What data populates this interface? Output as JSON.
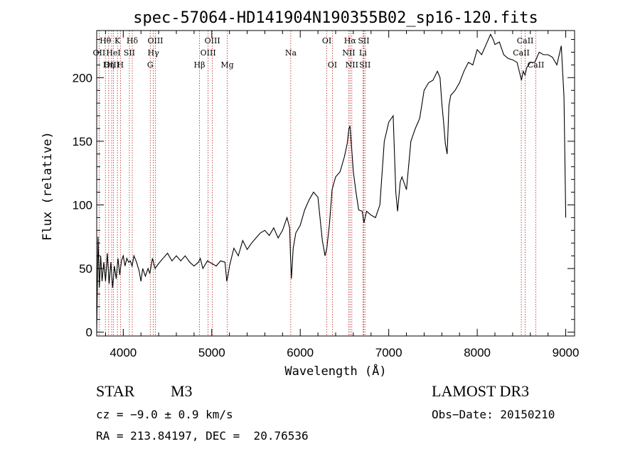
{
  "chart_data": {
    "type": "line",
    "title": "spec-57064-HD141904N190355B02_sp16-120.fits",
    "xlabel": "Wavelength (Å)",
    "ylabel": "Flux (relative)",
    "xlim": [
      3700,
      9100
    ],
    "ylim": [
      -3,
      237
    ],
    "xticks": [
      4000,
      5000,
      6000,
      7000,
      8000,
      9000
    ],
    "yticks": [
      0,
      50,
      100,
      150,
      200
    ],
    "xtick_labels": [
      "4000",
      "5000",
      "6000",
      "7000",
      "8000",
      "9000"
    ],
    "ytick_labels": [
      "0",
      "50",
      "100",
      "150",
      "200"
    ],
    "series": [
      {
        "name": "flux",
        "x": [
          3700,
          3715,
          3730,
          3745,
          3760,
          3780,
          3800,
          3820,
          3840,
          3860,
          3880,
          3900,
          3920,
          3940,
          3960,
          3980,
          4000,
          4020,
          4040,
          4060,
          4080,
          4100,
          4120,
          4150,
          4180,
          4200,
          4220,
          4250,
          4280,
          4300,
          4330,
          4360,
          4400,
          4450,
          4500,
          4550,
          4600,
          4650,
          4700,
          4750,
          4800,
          4850,
          4870,
          4900,
          4950,
          5000,
          5050,
          5100,
          5150,
          5170,
          5185,
          5200,
          5250,
          5300,
          5350,
          5400,
          5450,
          5500,
          5550,
          5600,
          5650,
          5700,
          5750,
          5800,
          5850,
          5880,
          5890,
          5900,
          5920,
          5950,
          6000,
          6050,
          6100,
          6150,
          6200,
          6250,
          6280,
          6300,
          6330,
          6360,
          6400,
          6450,
          6500,
          6530,
          6550,
          6562,
          6575,
          6600,
          6630,
          6660,
          6700,
          6720,
          6750,
          6800,
          6850,
          6900,
          6950,
          7000,
          7050,
          7080,
          7100,
          7130,
          7150,
          7200,
          7250,
          7300,
          7350,
          7400,
          7450,
          7500,
          7550,
          7580,
          7600,
          7620,
          7640,
          7660,
          7680,
          7700,
          7750,
          7800,
          7850,
          7900,
          7950,
          8000,
          8050,
          8100,
          8150,
          8180,
          8200,
          8250,
          8300,
          8350,
          8400,
          8450,
          8500,
          8520,
          8540,
          8560,
          8600,
          8650,
          8700,
          8750,
          8800,
          8850,
          8900,
          8950,
          8980,
          9000
        ],
        "y": [
          0,
          75,
          35,
          60,
          40,
          55,
          40,
          62,
          38,
          55,
          35,
          52,
          42,
          58,
          45,
          56,
          60,
          52,
          58,
          55,
          56,
          52,
          60,
          55,
          48,
          40,
          50,
          44,
          50,
          46,
          58,
          50,
          54,
          58,
          62,
          56,
          60,
          56,
          60,
          55,
          52,
          55,
          58,
          50,
          56,
          54,
          52,
          56,
          55,
          40,
          45,
          52,
          66,
          60,
          72,
          65,
          70,
          74,
          78,
          80,
          76,
          82,
          74,
          80,
          90,
          82,
          60,
          42,
          66,
          78,
          84,
          96,
          104,
          110,
          106,
          72,
          60,
          66,
          85,
          112,
          122,
          126,
          138,
          148,
          160,
          162,
          150,
          126,
          110,
          96,
          95,
          86,
          95,
          92,
          90,
          100,
          150,
          165,
          170,
          110,
          95,
          118,
          122,
          112,
          150,
          160,
          168,
          190,
          196,
          198,
          205,
          200,
          180,
          165,
          148,
          140,
          178,
          186,
          190,
          196,
          205,
          212,
          210,
          222,
          218,
          226,
          234,
          230,
          226,
          228,
          218,
          215,
          214,
          212,
          198,
          205,
          202,
          208,
          212,
          212,
          220,
          218,
          218,
          216,
          210,
          225,
          185,
          90
        ]
      }
    ],
    "spectral_lines": [
      {
        "label": "Hθ",
        "wavelength": 3798,
        "row": 1
      },
      {
        "label": "OII",
        "wavelength": 3727,
        "row": 2
      },
      {
        "label": "OIII",
        "wavelength": 3869,
        "row": 3
      },
      {
        "label": "K",
        "wavelength": 3934,
        "row": 1
      },
      {
        "label": "HeI",
        "wavelength": 3889,
        "row": 2
      },
      {
        "label": "Hη",
        "wavelength": 3835,
        "row": 3
      },
      {
        "label": "SII",
        "wavelength": 4069,
        "row": 2
      },
      {
        "label": "H",
        "wavelength": 3968,
        "row": 3
      },
      {
        "label": "Hδ",
        "wavelength": 4102,
        "row": 1
      },
      {
        "label": "OIII",
        "wavelength": 4363,
        "row": 1
      },
      {
        "label": "Hγ",
        "wavelength": 4340,
        "row": 2
      },
      {
        "label": "G",
        "wavelength": 4305,
        "row": 3
      },
      {
        "label": "Hβ",
        "wavelength": 4861,
        "row": 3
      },
      {
        "label": "OIII",
        "wavelength": 4959,
        "row": 2
      },
      {
        "label": "OIII",
        "wavelength": 5007,
        "row": 1
      },
      {
        "label": "Mg",
        "wavelength": 5175,
        "row": 3
      },
      {
        "label": "Na",
        "wavelength": 5893,
        "row": 2
      },
      {
        "label": "OI",
        "wavelength": 6300,
        "row": 1
      },
      {
        "label": "OI",
        "wavelength": 6363,
        "row": 3
      },
      {
        "label": "NII",
        "wavelength": 6548,
        "row": 2
      },
      {
        "label": "Hα",
        "wavelength": 6563,
        "row": 1
      },
      {
        "label": "NII",
        "wavelength": 6583,
        "row": 3
      },
      {
        "label": "SII",
        "wavelength": 6717,
        "row": 1
      },
      {
        "label": "Li",
        "wavelength": 6708,
        "row": 2
      },
      {
        "label": "SII",
        "wavelength": 6731,
        "row": 3
      },
      {
        "label": "CaII",
        "wavelength": 8498,
        "row": 2
      },
      {
        "label": "CaII",
        "wavelength": 8542,
        "row": 1
      },
      {
        "label": "CaII",
        "wavelength": 8662,
        "row": 3
      }
    ]
  },
  "info": {
    "object_class": "STAR",
    "subclass": "M3",
    "survey": "LAMOST DR3",
    "cz": "cz = −9.0 ± 0.9 km/s",
    "obs_date": "Obs−Date: 20150210",
    "coords": "RA = 213.84197, DEC =  20.76536"
  },
  "colors": {
    "line": "#000000",
    "marker": "#b22222",
    "text": "#000000"
  }
}
